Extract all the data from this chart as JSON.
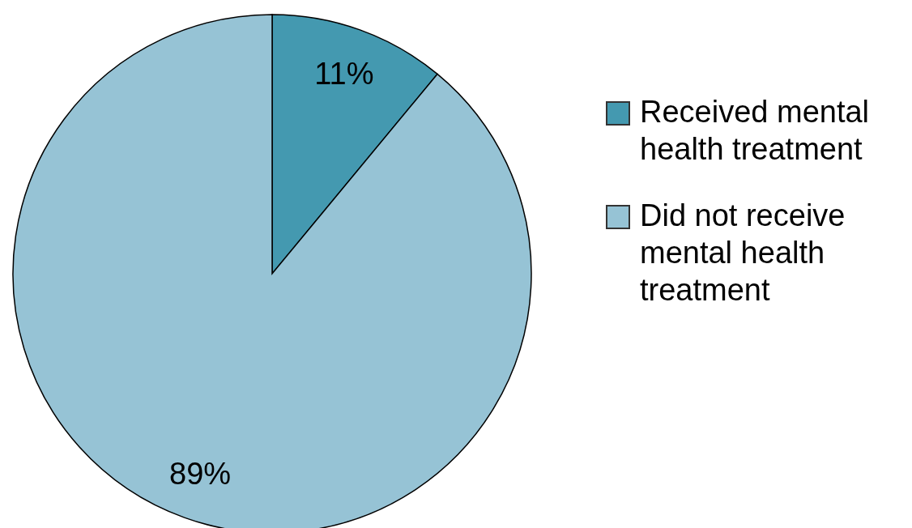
{
  "chart_data": {
    "type": "pie",
    "categories": [
      "Received mental health treatment",
      "Did not receive mental health treatment"
    ],
    "values": [
      11,
      89
    ],
    "colors": [
      "#4499b0",
      "#96c3d5"
    ],
    "value_labels": [
      "11%",
      "89%"
    ],
    "legend": "right"
  }
}
